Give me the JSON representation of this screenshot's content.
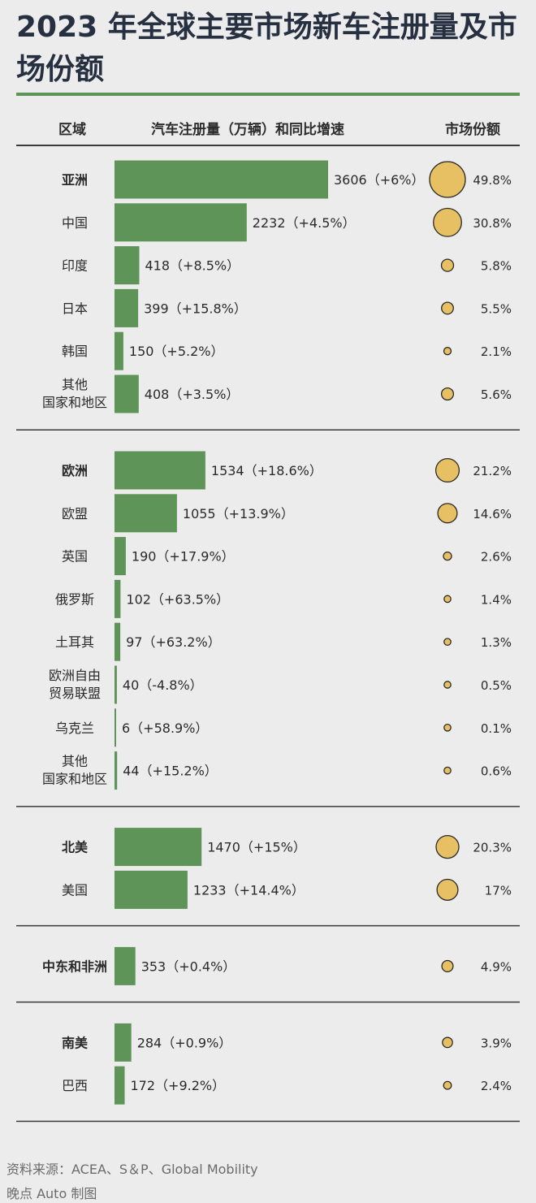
{
  "title": "2023 年全球主要市场新车注册量及市场份额",
  "header": {
    "region": "区域",
    "volume": "汽车注册量（万辆）和同比增速",
    "share": "市场份额"
  },
  "footer": {
    "source": "资料来源：ACEA、S＆P、Global Mobility",
    "credit": "晚点 Auto 制图"
  },
  "colors": {
    "bar": "#5e9458",
    "bubble": "#e6c062",
    "bubble_stroke": "#2a2a2a",
    "rule_accent": "#5e9458"
  },
  "chart_data": {
    "type": "bar",
    "orientation": "horizontal",
    "unit": "万辆",
    "groups": [
      {
        "rows": [
          {
            "label": "亚洲",
            "value": 3606,
            "growth": "+6%",
            "share": "49.8%",
            "bold": true
          },
          {
            "label": "中国",
            "value": 2232,
            "growth": "+4.5%",
            "share": "30.8%"
          },
          {
            "label": "印度",
            "value": 418,
            "growth": "+8.5%",
            "share": "5.8%"
          },
          {
            "label": "日本",
            "value": 399,
            "growth": "+15.8%",
            "share": "5.5%"
          },
          {
            "label": "韩国",
            "value": 150,
            "growth": "+5.2%",
            "share": "2.1%"
          },
          {
            "label": "其他\n国家和地区",
            "value": 408,
            "growth": "+3.5%",
            "share": "5.6%"
          }
        ]
      },
      {
        "rows": [
          {
            "label": "欧洲",
            "value": 1534,
            "growth": "+18.6%",
            "share": "21.2%",
            "bold": true
          },
          {
            "label": "欧盟",
            "value": 1055,
            "growth": "+13.9%",
            "share": "14.6%"
          },
          {
            "label": "英国",
            "value": 190,
            "growth": "+17.9%",
            "share": "2.6%"
          },
          {
            "label": "俄罗斯",
            "value": 102,
            "growth": "+63.5%",
            "share": "1.4%"
          },
          {
            "label": "土耳其",
            "value": 97,
            "growth": "+63.2%",
            "share": "1.3%"
          },
          {
            "label": "欧洲自由\n贸易联盟",
            "value": 40,
            "growth": "-4.8%",
            "share": "0.5%"
          },
          {
            "label": "乌克兰",
            "value": 6,
            "growth": "+58.9%",
            "share": "0.1%"
          },
          {
            "label": "其他\n国家和地区",
            "value": 44,
            "growth": "+15.2%",
            "share": "0.6%"
          }
        ]
      },
      {
        "rows": [
          {
            "label": "北美",
            "value": 1470,
            "growth": "+15%",
            "share": "20.3%",
            "bold": true
          },
          {
            "label": "美国",
            "value": 1233,
            "growth": "+14.4%",
            "share": "17%"
          }
        ]
      },
      {
        "rows": [
          {
            "label": "中东和非洲",
            "value": 353,
            "growth": "+0.4%",
            "share": "4.9%",
            "bold": true
          }
        ]
      },
      {
        "rows": [
          {
            "label": "南美",
            "value": 284,
            "growth": "+0.9%",
            "share": "3.9%",
            "bold": true
          },
          {
            "label": "巴西",
            "value": 172,
            "growth": "+9.2%",
            "share": "2.4%"
          }
        ]
      }
    ]
  }
}
